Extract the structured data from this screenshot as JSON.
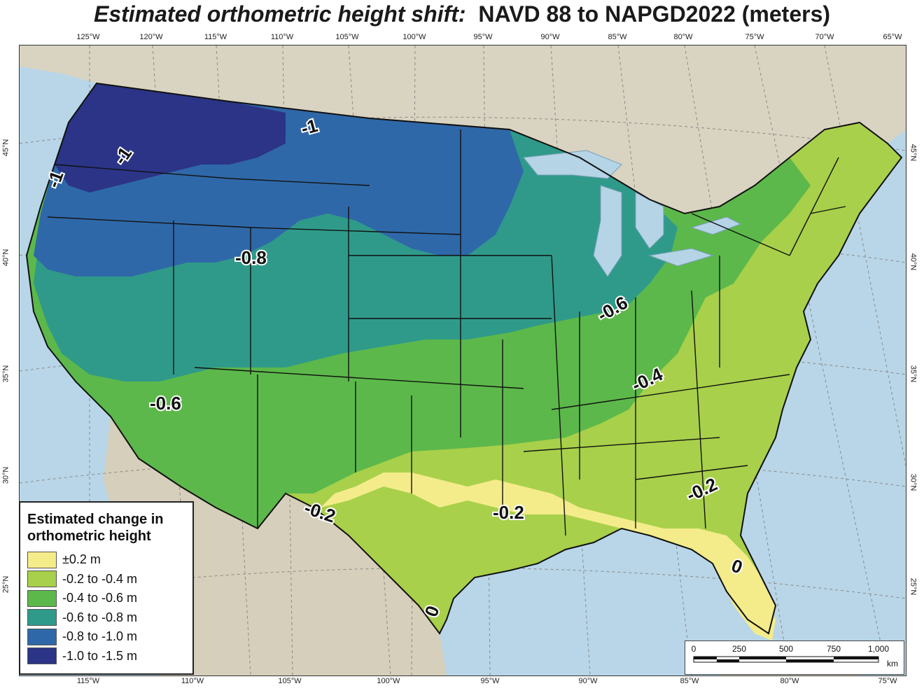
{
  "title": {
    "italic_part": "Estimated orthometric height shift:",
    "regular_part": "NAVD 88 to NAPGD2022 (meters)"
  },
  "axes": {
    "top_longitudes": [
      "125°W",
      "120°W",
      "115°W",
      "110°W",
      "105°W",
      "100°W",
      "95°W",
      "90°W",
      "85°W",
      "80°W",
      "75°W",
      "70°W",
      "65°W"
    ],
    "bottom_longitudes": [
      "115°W",
      "110°W",
      "105°W",
      "100°W",
      "95°W",
      "90°W",
      "85°W",
      "80°W",
      "75°W"
    ],
    "left_latitudes": [
      "45°N",
      "40°N",
      "35°N",
      "30°N",
      "25°N"
    ],
    "right_latitudes": [
      "45°N",
      "40°N",
      "35°N",
      "30°N",
      "25°N"
    ]
  },
  "contour_labels": [
    {
      "id": "c1",
      "text": "-1"
    },
    {
      "id": "c2",
      "text": "-1"
    },
    {
      "id": "c3",
      "text": "-1"
    },
    {
      "id": "c4",
      "text": "-0.8"
    },
    {
      "id": "c5",
      "text": "-0.6"
    },
    {
      "id": "c6",
      "text": "-0.6"
    },
    {
      "id": "c7",
      "text": "-0.4"
    },
    {
      "id": "c8",
      "text": "-0.2"
    },
    {
      "id": "c9",
      "text": "-0.2"
    },
    {
      "id": "c10",
      "text": "-0.2"
    },
    {
      "id": "c11",
      "text": "0"
    },
    {
      "id": "c12",
      "text": "0"
    }
  ],
  "legend": {
    "title_line1": "Estimated change in",
    "title_line2": "orthometric height",
    "items": [
      {
        "label": "±0.2 m",
        "color": "#f4ec8a"
      },
      {
        "label": "-0.2 to -0.4 m",
        "color": "#a8d04a"
      },
      {
        "label": "-0.4 to -0.6 m",
        "color": "#5cb84a"
      },
      {
        "label": "-0.6 to -0.8 m",
        "color": "#2f9a8a"
      },
      {
        "label": "-0.8 to -1.0 m",
        "color": "#2f68a8"
      },
      {
        "label": "-1.0 to -1.5 m",
        "color": "#2b3486"
      }
    ]
  },
  "scalebar": {
    "ticks": [
      "0",
      "250",
      "500",
      "750",
      "1,000"
    ],
    "unit": "km"
  },
  "colors": {
    "ocean": "#b8d6e8",
    "land_outside": "#d9d3c1",
    "great_lakes": "#b5d4e6"
  }
}
